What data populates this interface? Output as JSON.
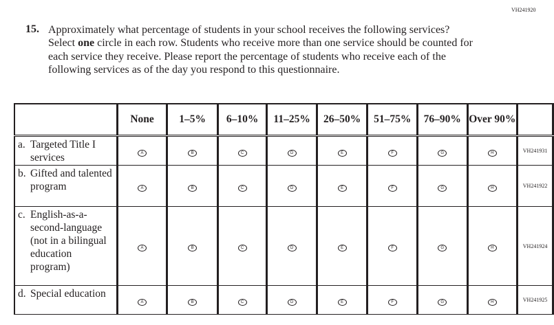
{
  "form_code": "VH241920",
  "question": {
    "number": "15.",
    "text_before": "Approximately what percentage of students in your school receives the following services? Select ",
    "text_bold": "one",
    "text_after": " circle in each row. Students who receive more than one service should be counted for each service they receive. Please report the percentage of students who receive each of the following services as of the day you respond to this questionnaire."
  },
  "columns": [
    "None",
    "1–5%",
    "6–10%",
    "11–25%",
    "26–50%",
    "51–75%",
    "76–90%",
    "Over 90%"
  ],
  "bubble_letters": [
    "A",
    "B",
    "C",
    "D",
    "E",
    "F",
    "G",
    "H"
  ],
  "rows": [
    {
      "letter": "a.",
      "label": "Targeted Title I services",
      "code": "VH241931"
    },
    {
      "letter": "b.",
      "label": "Gifted and talented program",
      "code": "VH241922"
    },
    {
      "letter": "c.",
      "label": "English-as-a-second-language (not in a bilingual education program)",
      "code": "VH241924"
    },
    {
      "letter": "d.",
      "label": "Special education",
      "code": "VH241925"
    }
  ]
}
